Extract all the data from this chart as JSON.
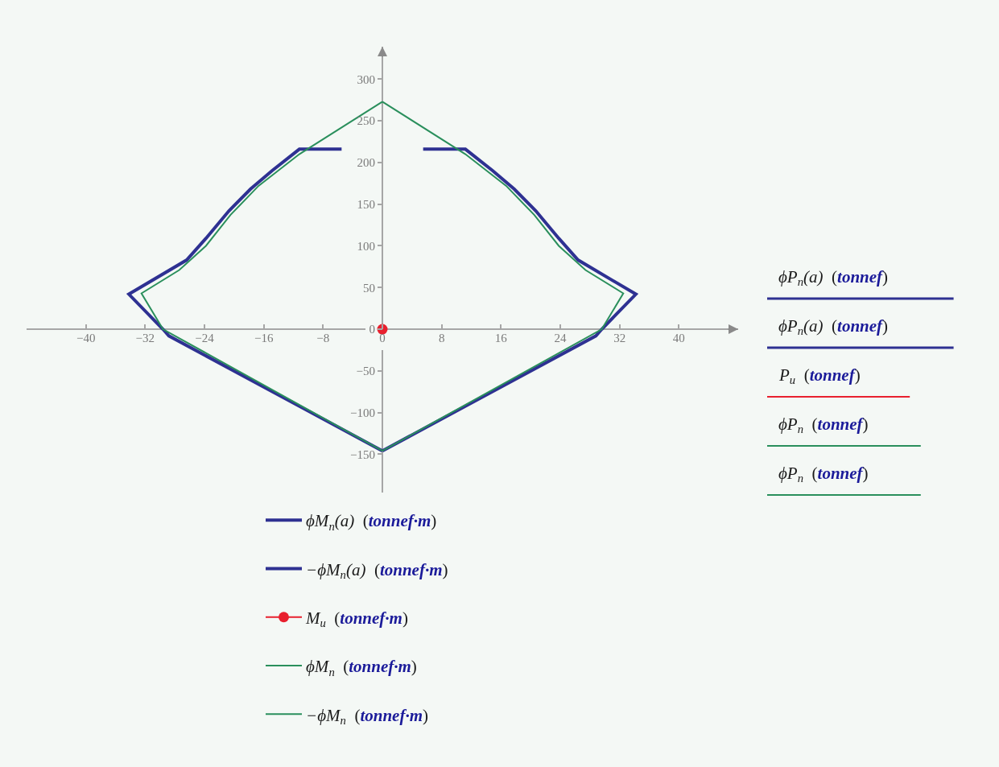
{
  "chart_data": {
    "type": "line",
    "xlim": [
      -48,
      48
    ],
    "ylim": [
      -196,
      339
    ],
    "xticks": [
      -40,
      -32,
      -24,
      -16,
      -8,
      0,
      8,
      16,
      24,
      32,
      40
    ],
    "yticks": [
      -150,
      -100,
      -50,
      0,
      50,
      100,
      150,
      200,
      250,
      300
    ],
    "grid": false,
    "legend": "bottom",
    "series": [
      {
        "name": "ϕM$_{n}$(a)  (tonnef·m)",
        "color": "#2e3192",
        "x": [
          5.5,
          11.2,
          14.9,
          17.8,
          20.7,
          23.8,
          26.4,
          34.2,
          29.6,
          28.8,
          0
        ],
        "values": [
          216,
          216,
          190,
          168,
          142,
          109,
          83,
          42,
          0,
          -8,
          -146
        ]
      },
      {
        "name": "−ϕM$_{n}$(a)  (tonnef·m)",
        "color": "#2e3192",
        "x": [
          -5.5,
          -11.2,
          -14.9,
          -17.8,
          -20.7,
          -23.8,
          -26.4,
          -34.2,
          -29.6,
          -28.8,
          0
        ],
        "values": [
          216,
          216,
          190,
          168,
          142,
          109,
          83,
          42,
          0,
          -8,
          -146
        ]
      },
      {
        "name": "M$_{u}$  (tonnef·m)",
        "color": "#e8202e",
        "x": [
          0
        ],
        "values": [
          0
        ],
        "marker": "circle"
      },
      {
        "name": "ϕM$_{n}$  (tonnef·m)",
        "color": "#2a8f5c",
        "x": [
          0,
          11.2,
          16.7,
          20.5,
          23.8,
          27.4,
          32.5,
          29.6,
          0
        ],
        "values": [
          273,
          210,
          172,
          137,
          100,
          71,
          43,
          0,
          -146
        ]
      },
      {
        "name": "−ϕM$_{n}$  (tonnef·m)",
        "color": "#2a8f5c",
        "x": [
          0,
          -11.2,
          -16.7,
          -20.5,
          -23.8,
          -27.4,
          -32.5,
          -29.6,
          0
        ],
        "values": [
          273,
          210,
          172,
          137,
          100,
          71,
          43,
          0,
          -146
        ]
      }
    ],
    "annotations": [
      "ϕP$_{n}$(a)  (tonnef)",
      "ϕP$_{n}$(a)  (tonnef)",
      "P$_{u}$  (tonnef)",
      "ϕP$_{n}$  (tonnef)",
      "ϕP$_{n}$  (tonnef)"
    ]
  }
}
